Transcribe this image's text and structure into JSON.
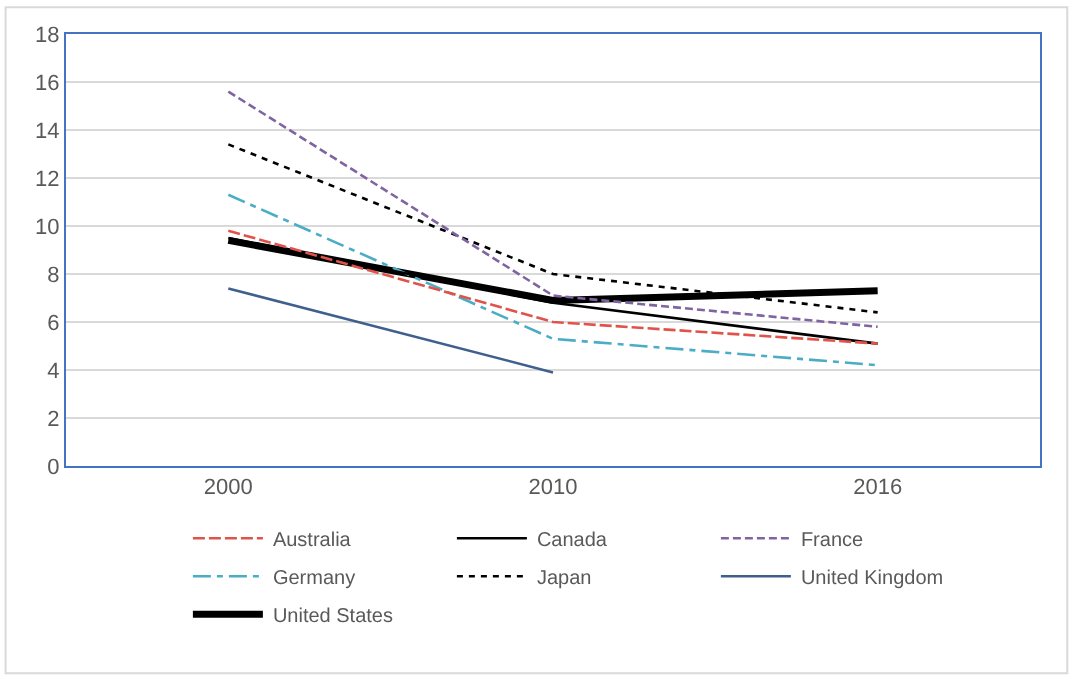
{
  "chart_data": {
    "type": "line",
    "categories": [
      "2000",
      "2010",
      "2016"
    ],
    "ylim": [
      0,
      18
    ],
    "yticks": [
      0,
      2,
      4,
      6,
      8,
      10,
      12,
      14,
      16,
      18
    ],
    "grid": "y",
    "legend": "bottom",
    "series": [
      {
        "name": "Australia",
        "color": "#e0534a",
        "line_style": "dashed",
        "values": [
          9.8,
          6.0,
          5.1
        ]
      },
      {
        "name": "Canada",
        "color": "#000000",
        "line_style": "solid",
        "values": [
          9.5,
          6.8,
          5.1
        ]
      },
      {
        "name": "France",
        "color": "#8064a2",
        "line_style": "dashed",
        "values": [
          15.6,
          7.1,
          5.8
        ]
      },
      {
        "name": "Germany",
        "color": "#4bacc6",
        "line_style": "dashdot",
        "values": [
          11.3,
          5.3,
          4.2
        ]
      },
      {
        "name": "Japan",
        "color": "#000000",
        "line_style": "dotted",
        "values": [
          13.4,
          8.0,
          6.4
        ]
      },
      {
        "name": "United Kingdom",
        "color": "#3f5f8f",
        "line_style": "solid",
        "values": [
          7.4,
          3.9,
          null
        ]
      },
      {
        "name": "United States",
        "color": "#000000",
        "line_style": "solid",
        "values": [
          9.4,
          6.9,
          7.3
        ]
      }
    ]
  }
}
